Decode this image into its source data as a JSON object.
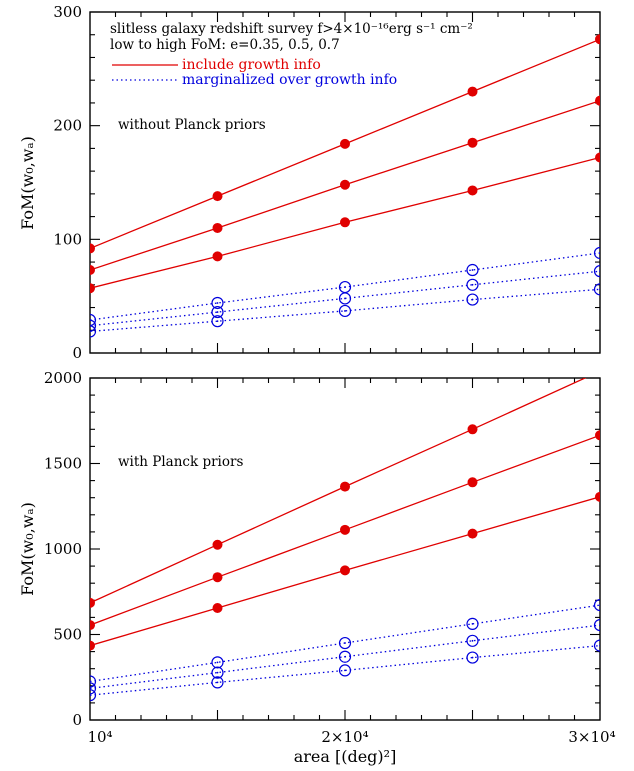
{
  "chart_data": [
    {
      "type": "line",
      "panel": "top",
      "annotations": [
        "slitless galaxy redshift survey f>4×10⁻¹⁶erg s⁻¹ cm⁻²",
        "low to high FoM: e=0.35, 0.5, 0.7",
        "without Planck priors"
      ],
      "legend": [
        "include growth info",
        "marginalized over growth info"
      ],
      "ylabel": "FoM(w₀,wₐ)",
      "xlim": [
        10000,
        30000
      ],
      "ylim": [
        0,
        300
      ],
      "yticks": [
        0,
        100,
        200,
        300
      ],
      "x": [
        10000,
        15000,
        20000,
        25000,
        30000
      ],
      "series": [
        {
          "name": "include growth info",
          "values": [
            57,
            85,
            115,
            143,
            172
          ],
          "style": "solid-filled",
          "color": "#e00000"
        },
        {
          "name": "include growth info",
          "values": [
            73,
            110,
            148,
            185,
            222
          ],
          "style": "solid-filled",
          "color": "#e00000"
        },
        {
          "name": "include growth info",
          "values": [
            92,
            138,
            184,
            230,
            276
          ],
          "style": "solid-filled",
          "color": "#e00000"
        },
        {
          "name": "marginalized over growth info",
          "values": [
            19,
            28,
            37,
            47,
            56
          ],
          "style": "dotted-open",
          "color": "#0000dd"
        },
        {
          "name": "marginalized over growth info",
          "values": [
            24,
            36,
            48,
            60,
            72
          ],
          "style": "dotted-open",
          "color": "#0000dd"
        },
        {
          "name": "marginalized over growth info",
          "values": [
            29,
            44,
            58,
            73,
            88
          ],
          "style": "dotted-open",
          "color": "#0000dd"
        }
      ]
    },
    {
      "type": "line",
      "panel": "bottom",
      "annotations": [
        "with Planck priors"
      ],
      "ylabel": "FoM(w₀,wₐ)",
      "xlabel": "area [(deg)²]",
      "xlim": [
        10000,
        30000
      ],
      "ylim": [
        0,
        2000
      ],
      "yticks": [
        0,
        500,
        1000,
        1500,
        2000
      ],
      "xtick_labels": [
        "10⁴",
        "2×10⁴",
        "3×10⁴"
      ],
      "xticks": [
        10000,
        20000,
        30000
      ],
      "x": [
        10000,
        15000,
        20000,
        25000,
        30000
      ],
      "series": [
        {
          "name": "include growth info",
          "values": [
            435,
            655,
            875,
            1090,
            1305
          ],
          "style": "solid-filled",
          "color": "#e00000"
        },
        {
          "name": "include growth info",
          "values": [
            555,
            835,
            1112,
            1390,
            1665
          ],
          "style": "solid-filled",
          "color": "#e00000"
        },
        {
          "name": "include growth info",
          "values": [
            685,
            1025,
            1365,
            1700,
            2040
          ],
          "style": "solid-filled",
          "color": "#e00000"
        },
        {
          "name": "marginalized over growth info",
          "values": [
            145,
            220,
            290,
            365,
            435
          ],
          "style": "dotted-open",
          "color": "#0000dd"
        },
        {
          "name": "marginalized over growth info",
          "values": [
            185,
            277,
            370,
            463,
            555
          ],
          "style": "dotted-open",
          "color": "#0000dd"
        },
        {
          "name": "marginalized over growth info",
          "values": [
            225,
            337,
            450,
            562,
            672
          ],
          "style": "dotted-open",
          "color": "#0000dd"
        }
      ]
    }
  ]
}
